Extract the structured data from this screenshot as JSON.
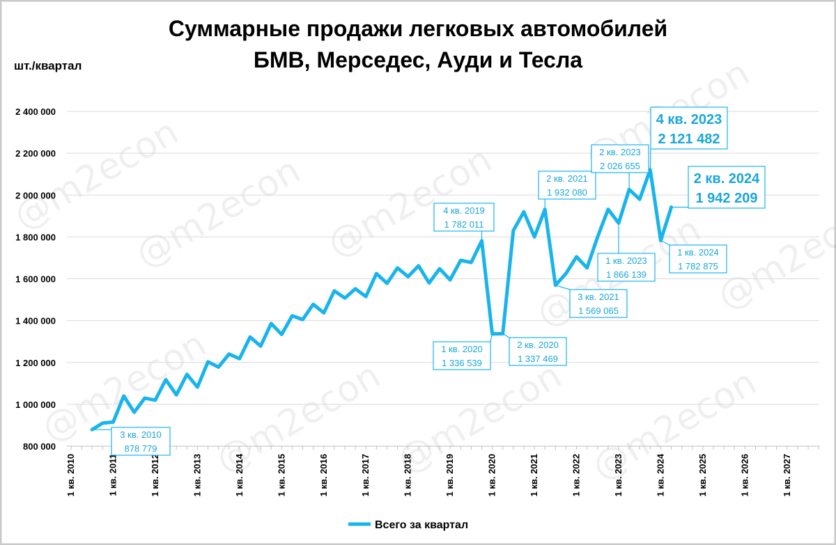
{
  "chart_data": {
    "type": "line",
    "title_line1": "Суммарные продажи легковых автомобилей",
    "title_line2": "БМВ, Мерседес, Ауди и Тесла",
    "ylabel": "шт./квартал",
    "xlabel": "",
    "ylim": [
      800000,
      2400000
    ],
    "yticks": [
      800000,
      1000000,
      1200000,
      1400000,
      1600000,
      1800000,
      2000000,
      2200000,
      2400000
    ],
    "ytick_labels": [
      "800 000",
      "1 000 000",
      "1 200 000",
      "1 400 000",
      "1 600 000",
      "1 800 000",
      "2 000 000",
      "2 200 000",
      "2 400 000"
    ],
    "xtick_labels": [
      "1 кв. 2010",
      "1 кв. 2011",
      "1 кв. 2012",
      "1 кв. 2013",
      "1 кв. 2014",
      "1 кв. 2015",
      "1 кв. 2016",
      "1 кв. 2017",
      "1 кв. 2018",
      "1 кв. 2019",
      "1 кв. 2020",
      "1 кв. 2021",
      "1 кв. 2022",
      "1 кв. 2023",
      "1 кв. 2024",
      "1 кв. 2025",
      "1 кв. 2026",
      "1 кв. 2027"
    ],
    "x_first_quarter": "3 кв. 2010",
    "grid": true,
    "legend_position": "bottom",
    "series": [
      {
        "name": "Всего за квартал",
        "color": "#19b4ec",
        "values": [
          878779,
          910000,
          915000,
          1040000,
          962000,
          1030000,
          1020000,
          1118000,
          1045000,
          1143000,
          1082000,
          1203000,
          1178000,
          1240000,
          1218000,
          1322000,
          1278000,
          1386000,
          1334000,
          1423000,
          1405000,
          1478000,
          1437000,
          1542000,
          1508000,
          1552000,
          1515000,
          1625000,
          1578000,
          1652000,
          1610000,
          1662000,
          1580000,
          1648000,
          1595000,
          1688000,
          1678000,
          1782011,
          1336539,
          1337469,
          1830000,
          1920000,
          1800000,
          1932080,
          1569065,
          1625000,
          1705000,
          1652000,
          1800000,
          1932000,
          1866139,
          2026655,
          1980000,
          2121482,
          1782875,
          1942209
        ]
      }
    ],
    "annotations": [
      {
        "label": "3 кв. 2010",
        "value": "878 779"
      },
      {
        "label": "4 кв. 2019",
        "value": "1 782 011"
      },
      {
        "label": "1 кв. 2020",
        "value": "1 336 539"
      },
      {
        "label": "2 кв. 2020",
        "value": "1 337 469"
      },
      {
        "label": "2 кв. 2021",
        "value": "1 932 080"
      },
      {
        "label": "3 кв. 2021",
        "value": "1 569 065"
      },
      {
        "label": "1 кв. 2023",
        "value": "1 866 139"
      },
      {
        "label": "2 кв. 2023",
        "value": "2 026 655"
      },
      {
        "label": "4 кв. 2023",
        "value": "2 121 482"
      },
      {
        "label": "1 кв. 2024",
        "value": "1 782 875"
      },
      {
        "label": "2 кв. 2024",
        "value": "1 942 209"
      }
    ],
    "watermark": "@m2econ"
  }
}
